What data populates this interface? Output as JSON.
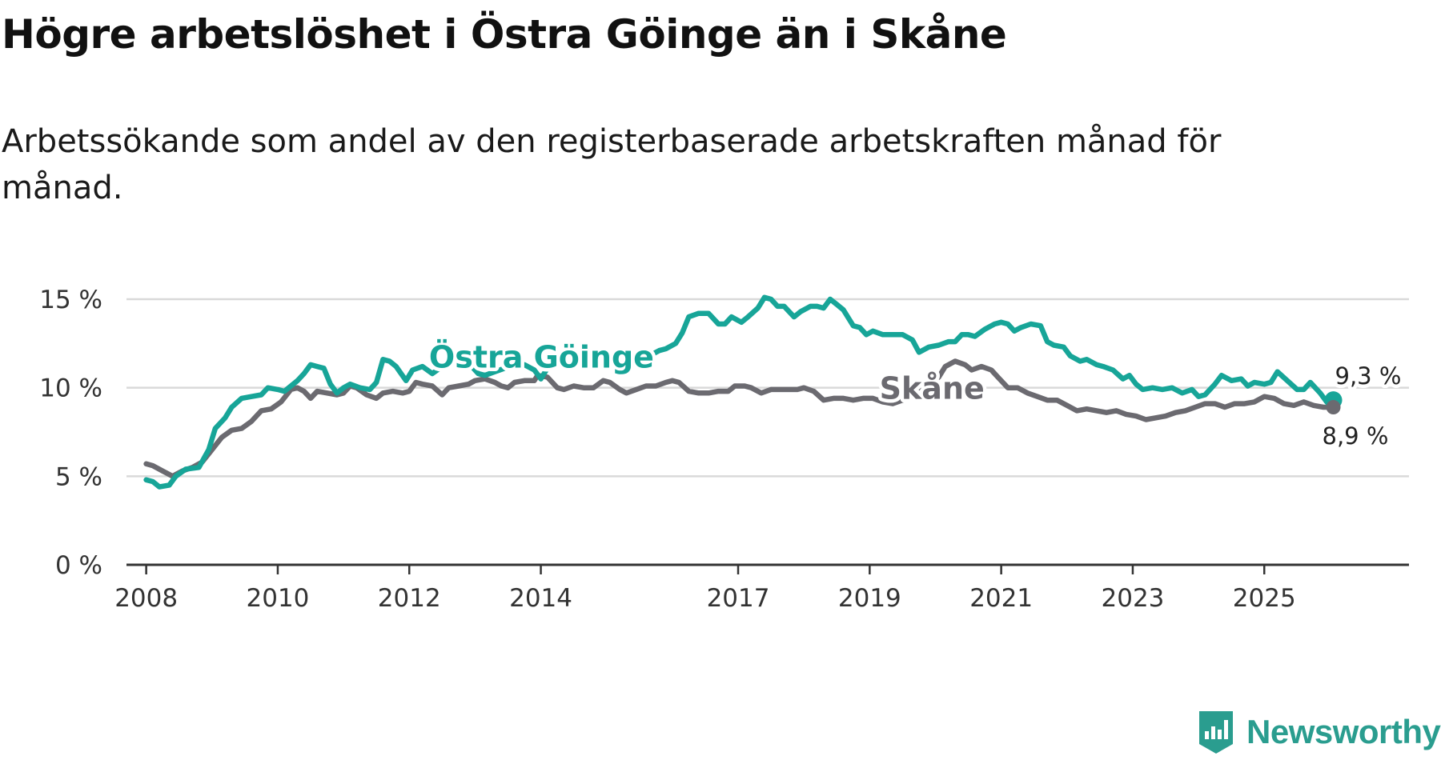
{
  "title": "Högre arbetslöshet i Östra Göinge än i Skåne",
  "subtitle": "Arbetssökande som andel av den registerbaserade arbetskraften månad för månad.",
  "brand": "Newsworthy",
  "colors": {
    "ostra": "#17a598",
    "skane": "#6b6a70",
    "grid": "#d9d9d9",
    "axis": "#333333",
    "brand": "#2a9d8f"
  },
  "chart_data": {
    "type": "line",
    "title": "Högre arbetslöshet i Östra Göinge än i Skåne",
    "subtitle": "Arbetssökande som andel av den registerbaserade arbetskraften månad för månad.",
    "xlabel": "",
    "ylabel": "",
    "xlim": [
      2007.7,
      2027.2
    ],
    "ylim": [
      0,
      15
    ],
    "yticks": [
      0,
      5,
      10,
      15
    ],
    "ytick_labels": [
      "0 %",
      "5 %",
      "10 %",
      "15 %"
    ],
    "xticks": [
      2008,
      2010,
      2012,
      2014,
      2017,
      2019,
      2021,
      2023,
      2025
    ],
    "xtick_labels": [
      "2008",
      "2010",
      "2012",
      "2014",
      "2017",
      "2019",
      "2021",
      "2023",
      "2025"
    ],
    "grid": true,
    "series": [
      {
        "name": "Östra Göinge",
        "end_label": "9,3 %",
        "points": [
          [
            2008.0,
            4.8
          ],
          [
            2008.1,
            4.7
          ],
          [
            2008.2,
            4.4
          ],
          [
            2008.35,
            4.5
          ],
          [
            2008.45,
            5.0
          ],
          [
            2008.6,
            5.4
          ],
          [
            2008.8,
            5.5
          ],
          [
            2008.95,
            6.5
          ],
          [
            2009.05,
            7.7
          ],
          [
            2009.2,
            8.3
          ],
          [
            2009.3,
            8.9
          ],
          [
            2009.45,
            9.4
          ],
          [
            2009.6,
            9.5
          ],
          [
            2009.75,
            9.6
          ],
          [
            2009.85,
            10.0
          ],
          [
            2010.0,
            9.9
          ],
          [
            2010.1,
            9.8
          ],
          [
            2010.3,
            10.4
          ],
          [
            2010.4,
            10.8
          ],
          [
            2010.5,
            11.3
          ],
          [
            2010.6,
            11.2
          ],
          [
            2010.7,
            11.1
          ],
          [
            2010.8,
            10.2
          ],
          [
            2010.9,
            9.7
          ],
          [
            2011.0,
            10.0
          ],
          [
            2011.1,
            10.2
          ],
          [
            2011.25,
            10.0
          ],
          [
            2011.4,
            9.9
          ],
          [
            2011.5,
            10.3
          ],
          [
            2011.6,
            11.6
          ],
          [
            2011.7,
            11.5
          ],
          [
            2011.8,
            11.2
          ],
          [
            2011.95,
            10.4
          ],
          [
            2012.05,
            11.0
          ],
          [
            2012.2,
            11.2
          ],
          [
            2012.35,
            10.8
          ],
          [
            2012.5,
            11.2
          ],
          [
            2012.65,
            11.6
          ],
          [
            2012.75,
            12.0
          ],
          [
            2012.85,
            11.6
          ],
          [
            2012.95,
            11.2
          ],
          [
            2013.05,
            10.8
          ],
          [
            2013.15,
            10.7
          ],
          [
            2013.3,
            10.9
          ],
          [
            2013.45,
            11.1
          ],
          [
            2013.6,
            11.2
          ],
          [
            2013.75,
            11.3
          ],
          [
            2013.9,
            11.0
          ],
          [
            2014.0,
            10.5
          ],
          [
            2014.1,
            11.1
          ],
          [
            2014.2,
            11.4
          ],
          [
            2014.35,
            11.4
          ],
          [
            2014.5,
            11.5
          ],
          [
            2014.65,
            11.8
          ],
          [
            2014.8,
            11.8
          ],
          [
            2014.95,
            11.6
          ],
          [
            2015.05,
            11.8
          ],
          [
            2015.2,
            12.0
          ],
          [
            2015.35,
            11.9
          ],
          [
            2015.5,
            11.5
          ],
          [
            2015.65,
            11.8
          ],
          [
            2015.8,
            12.1
          ],
          [
            2015.9,
            12.2
          ],
          [
            2016.05,
            12.5
          ],
          [
            2016.15,
            13.1
          ],
          [
            2016.25,
            14.0
          ],
          [
            2016.4,
            14.2
          ],
          [
            2016.55,
            14.2
          ],
          [
            2016.7,
            13.6
          ],
          [
            2016.8,
            13.6
          ],
          [
            2016.9,
            14.0
          ],
          [
            2017.05,
            13.7
          ],
          [
            2017.15,
            14.0
          ],
          [
            2017.3,
            14.5
          ],
          [
            2017.4,
            15.1
          ],
          [
            2017.5,
            15.0
          ],
          [
            2017.6,
            14.6
          ],
          [
            2017.7,
            14.6
          ],
          [
            2017.85,
            14.0
          ],
          [
            2017.95,
            14.3
          ],
          [
            2018.1,
            14.6
          ],
          [
            2018.2,
            14.6
          ],
          [
            2018.3,
            14.5
          ],
          [
            2018.4,
            15.0
          ],
          [
            2018.5,
            14.7
          ],
          [
            2018.6,
            14.4
          ],
          [
            2018.75,
            13.5
          ],
          [
            2018.85,
            13.4
          ],
          [
            2018.95,
            13.0
          ],
          [
            2019.05,
            13.2
          ],
          [
            2019.2,
            13.0
          ],
          [
            2019.35,
            13.0
          ],
          [
            2019.5,
            13.0
          ],
          [
            2019.65,
            12.7
          ],
          [
            2019.75,
            12.0
          ],
          [
            2019.9,
            12.3
          ],
          [
            2020.05,
            12.4
          ],
          [
            2020.2,
            12.6
          ],
          [
            2020.3,
            12.6
          ],
          [
            2020.4,
            13.0
          ],
          [
            2020.5,
            13.0
          ],
          [
            2020.6,
            12.9
          ],
          [
            2020.75,
            13.3
          ],
          [
            2020.9,
            13.6
          ],
          [
            2021.0,
            13.7
          ],
          [
            2021.1,
            13.6
          ],
          [
            2021.2,
            13.2
          ],
          [
            2021.3,
            13.4
          ],
          [
            2021.45,
            13.6
          ],
          [
            2021.6,
            13.5
          ],
          [
            2021.7,
            12.6
          ],
          [
            2021.8,
            12.4
          ],
          [
            2021.95,
            12.3
          ],
          [
            2022.05,
            11.8
          ],
          [
            2022.2,
            11.5
          ],
          [
            2022.3,
            11.6
          ],
          [
            2022.45,
            11.3
          ],
          [
            2022.55,
            11.2
          ],
          [
            2022.7,
            11.0
          ],
          [
            2022.85,
            10.5
          ],
          [
            2022.95,
            10.7
          ],
          [
            2023.05,
            10.2
          ],
          [
            2023.15,
            9.9
          ],
          [
            2023.3,
            10.0
          ],
          [
            2023.45,
            9.9
          ],
          [
            2023.6,
            10.0
          ],
          [
            2023.75,
            9.7
          ],
          [
            2023.9,
            9.9
          ],
          [
            2024.0,
            9.5
          ],
          [
            2024.1,
            9.6
          ],
          [
            2024.25,
            10.2
          ],
          [
            2024.35,
            10.7
          ],
          [
            2024.5,
            10.4
          ],
          [
            2024.65,
            10.5
          ],
          [
            2024.75,
            10.1
          ],
          [
            2024.85,
            10.3
          ],
          [
            2025.0,
            10.2
          ],
          [
            2025.1,
            10.3
          ],
          [
            2025.2,
            10.9
          ],
          [
            2025.35,
            10.4
          ],
          [
            2025.5,
            9.9
          ],
          [
            2025.6,
            9.9
          ],
          [
            2025.7,
            10.3
          ],
          [
            2025.85,
            9.7
          ],
          [
            2025.95,
            9.2
          ],
          [
            2026.05,
            9.3
          ]
        ]
      },
      {
        "name": "Skåne",
        "end_label": "8,9 %",
        "points": [
          [
            2008.0,
            5.7
          ],
          [
            2008.1,
            5.6
          ],
          [
            2008.25,
            5.3
          ],
          [
            2008.4,
            5.0
          ],
          [
            2008.55,
            5.3
          ],
          [
            2008.7,
            5.5
          ],
          [
            2008.85,
            5.8
          ],
          [
            2009.0,
            6.5
          ],
          [
            2009.15,
            7.2
          ],
          [
            2009.3,
            7.6
          ],
          [
            2009.45,
            7.7
          ],
          [
            2009.6,
            8.1
          ],
          [
            2009.75,
            8.7
          ],
          [
            2009.9,
            8.8
          ],
          [
            2010.05,
            9.2
          ],
          [
            2010.2,
            9.9
          ],
          [
            2010.3,
            10.0
          ],
          [
            2010.4,
            9.8
          ],
          [
            2010.5,
            9.4
          ],
          [
            2010.6,
            9.8
          ],
          [
            2010.75,
            9.7
          ],
          [
            2010.9,
            9.6
          ],
          [
            2011.0,
            9.7
          ],
          [
            2011.1,
            10.1
          ],
          [
            2011.2,
            10.0
          ],
          [
            2011.35,
            9.6
          ],
          [
            2011.5,
            9.4
          ],
          [
            2011.6,
            9.7
          ],
          [
            2011.75,
            9.8
          ],
          [
            2011.9,
            9.7
          ],
          [
            2012.0,
            9.8
          ],
          [
            2012.1,
            10.3
          ],
          [
            2012.2,
            10.2
          ],
          [
            2012.35,
            10.1
          ],
          [
            2012.5,
            9.6
          ],
          [
            2012.6,
            10.0
          ],
          [
            2012.75,
            10.1
          ],
          [
            2012.9,
            10.2
          ],
          [
            2013.0,
            10.4
          ],
          [
            2013.15,
            10.5
          ],
          [
            2013.3,
            10.3
          ],
          [
            2013.4,
            10.1
          ],
          [
            2013.5,
            10.0
          ],
          [
            2013.6,
            10.3
          ],
          [
            2013.75,
            10.4
          ],
          [
            2013.9,
            10.4
          ],
          [
            2013.95,
            10.7
          ],
          [
            2014.1,
            10.6
          ],
          [
            2014.25,
            10.0
          ],
          [
            2014.35,
            9.9
          ],
          [
            2014.5,
            10.1
          ],
          [
            2014.65,
            10.0
          ],
          [
            2014.8,
            10.0
          ],
          [
            2014.95,
            10.4
          ],
          [
            2015.05,
            10.3
          ],
          [
            2015.2,
            9.9
          ],
          [
            2015.3,
            9.7
          ],
          [
            2015.45,
            9.9
          ],
          [
            2015.6,
            10.1
          ],
          [
            2015.75,
            10.1
          ],
          [
            2015.9,
            10.3
          ],
          [
            2016.0,
            10.4
          ],
          [
            2016.1,
            10.3
          ],
          [
            2016.25,
            9.8
          ],
          [
            2016.4,
            9.7
          ],
          [
            2016.55,
            9.7
          ],
          [
            2016.7,
            9.8
          ],
          [
            2016.85,
            9.8
          ],
          [
            2016.95,
            10.1
          ],
          [
            2017.1,
            10.1
          ],
          [
            2017.2,
            10.0
          ],
          [
            2017.35,
            9.7
          ],
          [
            2017.5,
            9.9
          ],
          [
            2017.6,
            9.9
          ],
          [
            2017.75,
            9.9
          ],
          [
            2017.9,
            9.9
          ],
          [
            2018.0,
            10.0
          ],
          [
            2018.15,
            9.8
          ],
          [
            2018.3,
            9.3
          ],
          [
            2018.45,
            9.4
          ],
          [
            2018.6,
            9.4
          ],
          [
            2018.75,
            9.3
          ],
          [
            2018.9,
            9.4
          ],
          [
            2019.05,
            9.4
          ],
          [
            2019.2,
            9.2
          ],
          [
            2019.35,
            9.1
          ],
          [
            2019.5,
            9.3
          ],
          [
            2019.65,
            9.8
          ],
          [
            2019.8,
            10.1
          ],
          [
            2019.95,
            10.3
          ],
          [
            2020.05,
            10.6
          ],
          [
            2020.15,
            11.2
          ],
          [
            2020.3,
            11.5
          ],
          [
            2020.45,
            11.3
          ],
          [
            2020.55,
            11.0
          ],
          [
            2020.7,
            11.2
          ],
          [
            2020.85,
            11.0
          ],
          [
            2020.95,
            10.6
          ],
          [
            2021.1,
            10.0
          ],
          [
            2021.25,
            10.0
          ],
          [
            2021.4,
            9.7
          ],
          [
            2021.55,
            9.5
          ],
          [
            2021.7,
            9.3
          ],
          [
            2021.85,
            9.3
          ],
          [
            2022.0,
            9.0
          ],
          [
            2022.15,
            8.7
          ],
          [
            2022.3,
            8.8
          ],
          [
            2022.45,
            8.7
          ],
          [
            2022.6,
            8.6
          ],
          [
            2022.75,
            8.7
          ],
          [
            2022.9,
            8.5
          ],
          [
            2023.05,
            8.4
          ],
          [
            2023.2,
            8.2
          ],
          [
            2023.35,
            8.3
          ],
          [
            2023.5,
            8.4
          ],
          [
            2023.65,
            8.6
          ],
          [
            2023.8,
            8.7
          ],
          [
            2023.95,
            8.9
          ],
          [
            2024.1,
            9.1
          ],
          [
            2024.25,
            9.1
          ],
          [
            2024.4,
            8.9
          ],
          [
            2024.55,
            9.1
          ],
          [
            2024.7,
            9.1
          ],
          [
            2024.85,
            9.2
          ],
          [
            2025.0,
            9.5
          ],
          [
            2025.15,
            9.4
          ],
          [
            2025.3,
            9.1
          ],
          [
            2025.45,
            9.0
          ],
          [
            2025.6,
            9.2
          ],
          [
            2025.75,
            9.0
          ],
          [
            2025.9,
            8.9
          ],
          [
            2026.05,
            8.9
          ]
        ]
      }
    ]
  }
}
